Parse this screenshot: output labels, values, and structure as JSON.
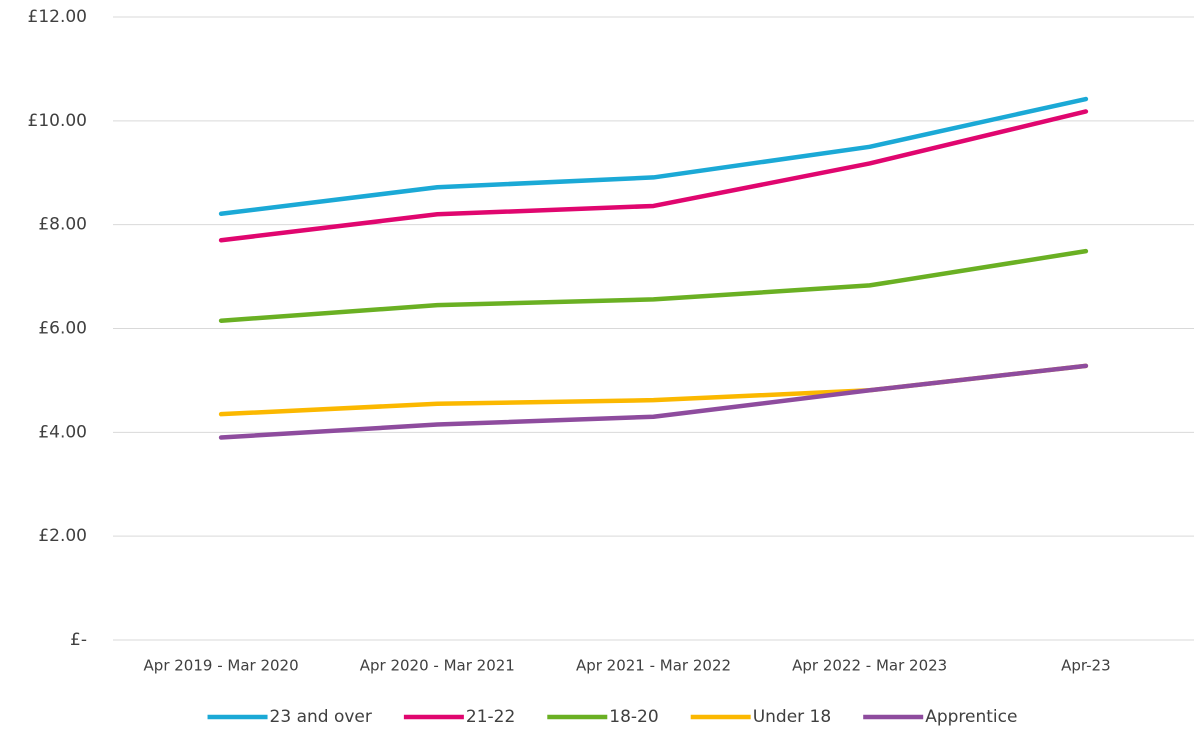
{
  "chart_data": {
    "type": "line",
    "categories": [
      "Apr 2019 - Mar 2020",
      "Apr 2020 - Mar 2021",
      "Apr 2021 - Mar 2022",
      "Apr 2022 - Mar 2023",
      "Apr-23"
    ],
    "series": [
      {
        "name": "23 and over",
        "color": "#1ba9d6",
        "values": [
          8.21,
          8.72,
          8.91,
          9.5,
          10.42
        ]
      },
      {
        "name": "21-22",
        "color": "#e0066f",
        "values": [
          7.7,
          8.2,
          8.36,
          9.18,
          10.18
        ]
      },
      {
        "name": "18-20",
        "color": "#6ab023",
        "values": [
          6.15,
          6.45,
          6.56,
          6.83,
          7.49
        ]
      },
      {
        "name": "Under 18",
        "color": "#fbb800",
        "values": [
          4.35,
          4.55,
          4.62,
          4.81,
          5.28
        ]
      },
      {
        "name": "Apprentice",
        "color": "#8e4c9e",
        "values": [
          3.9,
          4.15,
          4.3,
          4.81,
          5.28
        ]
      }
    ],
    "ylim": [
      0,
      12
    ],
    "yticks": [
      {
        "value": 0,
        "label": "£-"
      },
      {
        "value": 2,
        "label": "£2.00"
      },
      {
        "value": 4,
        "label": "£4.00"
      },
      {
        "value": 6,
        "label": "£6.00"
      },
      {
        "value": 8,
        "label": "£8.00"
      },
      {
        "value": 10,
        "label": "£10.00"
      },
      {
        "value": 12,
        "label": "£12.00"
      }
    ],
    "grid": true,
    "legend": "bottom"
  }
}
